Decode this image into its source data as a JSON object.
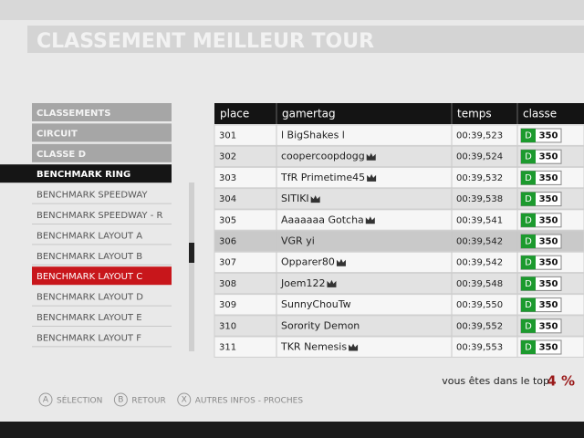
{
  "header": {
    "title": "CLASSEMENT MEILLEUR TOUR"
  },
  "menu": {
    "items": [
      "CLASSEMENTS",
      "CIRCUIT",
      "CLASSE D",
      "BENCHMARK RING",
      "BENCHMARK SPEEDWAY",
      "BENCHMARK SPEEDWAY - R",
      "BENCHMARK LAYOUT A",
      "BENCHMARK LAYOUT B",
      "BENCHMARK LAYOUT C",
      "BENCHMARK LAYOUT D",
      "BENCHMARK LAYOUT E",
      "BENCHMARK LAYOUT F"
    ]
  },
  "table": {
    "columns": [
      "place",
      "gamertag",
      "temps",
      "classe"
    ],
    "rows": [
      {
        "place": "301",
        "gamertag": "l BigShakes l",
        "temps": "00:39,523",
        "class_letter": "D",
        "class_value": "350",
        "crown": false
      },
      {
        "place": "302",
        "gamertag": "coopercoopdogg",
        "temps": "00:39,524",
        "class_letter": "D",
        "class_value": "350",
        "crown": true
      },
      {
        "place": "303",
        "gamertag": "TfR Primetime45",
        "temps": "00:39,532",
        "class_letter": "D",
        "class_value": "350",
        "crown": true
      },
      {
        "place": "304",
        "gamertag": "SITIKI",
        "temps": "00:39,538",
        "class_letter": "D",
        "class_value": "350",
        "crown": true
      },
      {
        "place": "305",
        "gamertag": "Aaaaaaa Gotcha",
        "temps": "00:39,541",
        "class_letter": "D",
        "class_value": "350",
        "crown": true
      },
      {
        "place": "306",
        "gamertag": "VGR yi",
        "temps": "00:39,542",
        "class_letter": "D",
        "class_value": "350",
        "crown": false
      },
      {
        "place": "307",
        "gamertag": "Opparer80",
        "temps": "00:39,542",
        "class_letter": "D",
        "class_value": "350",
        "crown": true
      },
      {
        "place": "308",
        "gamertag": "Joem122",
        "temps": "00:39,548",
        "class_letter": "D",
        "class_value": "350",
        "crown": true
      },
      {
        "place": "309",
        "gamertag": "SunnyChouTw",
        "temps": "00:39,550",
        "class_letter": "D",
        "class_value": "350",
        "crown": false
      },
      {
        "place": "310",
        "gamertag": "Sorority Demon",
        "temps": "00:39,552",
        "class_letter": "D",
        "class_value": "350",
        "crown": false
      },
      {
        "place": "311",
        "gamertag": "TKR Nemesis",
        "temps": "00:39,553",
        "class_letter": "D",
        "class_value": "350",
        "crown": true
      }
    ]
  },
  "footer": {
    "rank_text": "vous êtes dans le top",
    "rank_value": "4 %",
    "buttons": [
      {
        "key": "A",
        "label": "SÉLECTION"
      },
      {
        "key": "B",
        "label": "RETOUR"
      },
      {
        "key": "X",
        "label": "AUTRES INFOS - PROCHES"
      }
    ]
  }
}
